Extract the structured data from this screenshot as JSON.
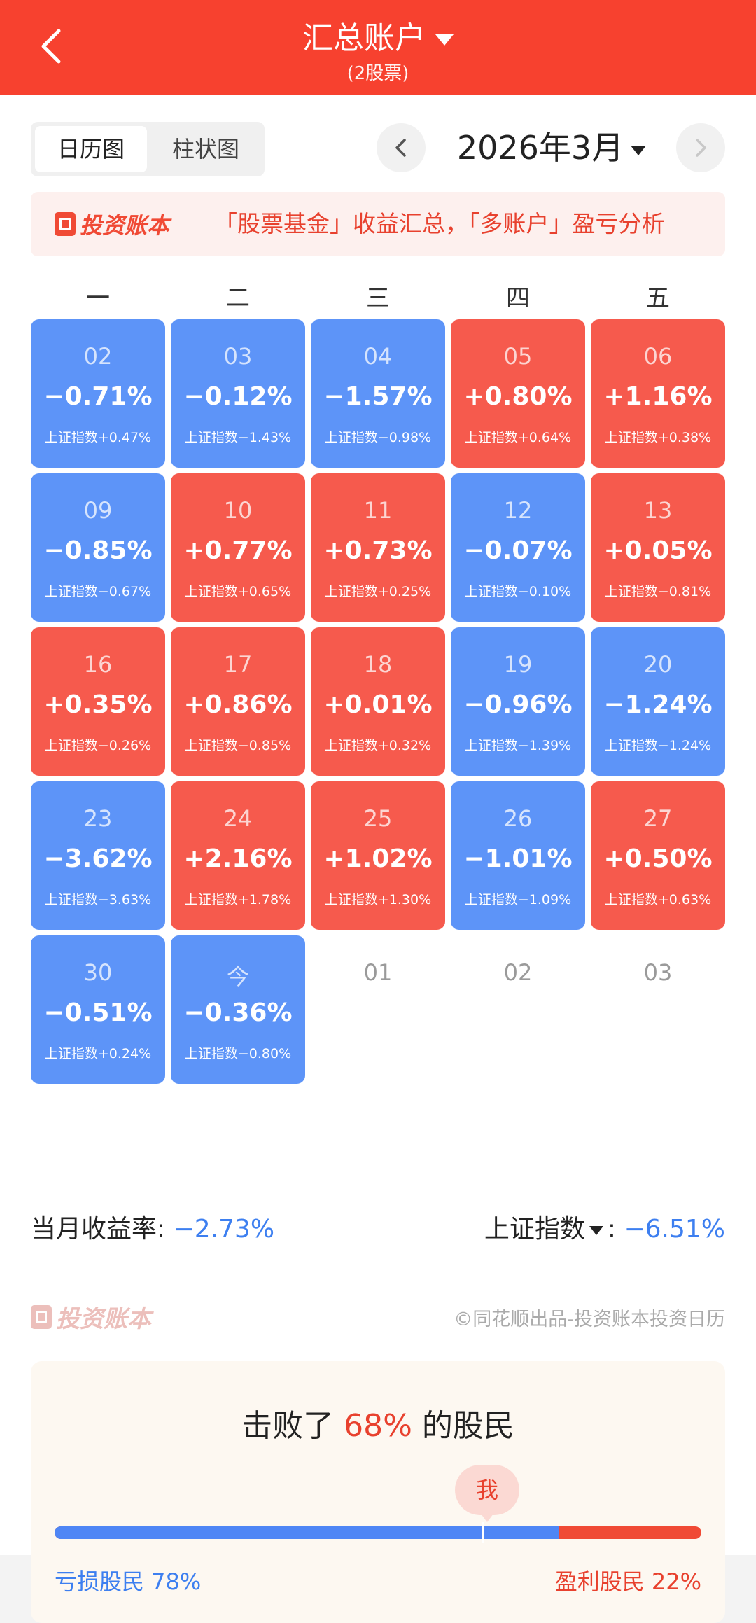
{
  "header": {
    "title": "汇总账户",
    "subtitle": "(2股票)"
  },
  "tabs": [
    {
      "label": "日历图",
      "active": true
    },
    {
      "label": "柱状图",
      "active": false
    }
  ],
  "month_label": "2026年3月",
  "banner": {
    "logo_text": "投资账本",
    "text": "「股票基金」收益汇总，「多账户」盈亏分析"
  },
  "weekdays": [
    "一",
    "二",
    "三",
    "四",
    "五"
  ],
  "calendar": [
    {
      "day": "02",
      "pct": "−0.71%",
      "index": "上证指数+0.47%",
      "color": "blue"
    },
    {
      "day": "03",
      "pct": "−0.12%",
      "index": "上证指数−1.43%",
      "color": "blue"
    },
    {
      "day": "04",
      "pct": "−1.57%",
      "index": "上证指数−0.98%",
      "color": "blue"
    },
    {
      "day": "05",
      "pct": "+0.80%",
      "index": "上证指数+0.64%",
      "color": "red"
    },
    {
      "day": "06",
      "pct": "+1.16%",
      "index": "上证指数+0.38%",
      "color": "red"
    },
    {
      "day": "09",
      "pct": "−0.85%",
      "index": "上证指数−0.67%",
      "color": "blue"
    },
    {
      "day": "10",
      "pct": "+0.77%",
      "index": "上证指数+0.65%",
      "color": "red"
    },
    {
      "day": "11",
      "pct": "+0.73%",
      "index": "上证指数+0.25%",
      "color": "red"
    },
    {
      "day": "12",
      "pct": "−0.07%",
      "index": "上证指数−0.10%",
      "color": "blue"
    },
    {
      "day": "13",
      "pct": "+0.05%",
      "index": "上证指数−0.81%",
      "color": "red"
    },
    {
      "day": "16",
      "pct": "+0.35%",
      "index": "上证指数−0.26%",
      "color": "red"
    },
    {
      "day": "17",
      "pct": "+0.86%",
      "index": "上证指数−0.85%",
      "color": "red"
    },
    {
      "day": "18",
      "pct": "+0.01%",
      "index": "上证指数+0.32%",
      "color": "red"
    },
    {
      "day": "19",
      "pct": "−0.96%",
      "index": "上证指数−1.39%",
      "color": "blue"
    },
    {
      "day": "20",
      "pct": "−1.24%",
      "index": "上证指数−1.24%",
      "color": "blue"
    },
    {
      "day": "23",
      "pct": "−3.62%",
      "index": "上证指数−3.63%",
      "color": "blue"
    },
    {
      "day": "24",
      "pct": "+2.16%",
      "index": "上证指数+1.78%",
      "color": "red"
    },
    {
      "day": "25",
      "pct": "+1.02%",
      "index": "上证指数+1.30%",
      "color": "red"
    },
    {
      "day": "26",
      "pct": "−1.01%",
      "index": "上证指数−1.09%",
      "color": "blue"
    },
    {
      "day": "27",
      "pct": "+0.50%",
      "index": "上证指数+0.63%",
      "color": "red"
    },
    {
      "day": "30",
      "pct": "−0.51%",
      "index": "上证指数+0.24%",
      "color": "blue"
    },
    {
      "day": "今",
      "pct": "−0.36%",
      "index": "上证指数−0.80%",
      "color": "blue"
    },
    {
      "day": "01",
      "pct": "",
      "index": "",
      "color": "empty"
    },
    {
      "day": "02",
      "pct": "",
      "index": "",
      "color": "empty"
    },
    {
      "day": "03",
      "pct": "",
      "index": "",
      "color": "empty"
    }
  ],
  "summary": {
    "monthly_label": "当月收益率:",
    "monthly_value": "−2.73%",
    "index_label": "上证指数",
    "index_colon": ":",
    "index_value": "−6.51%"
  },
  "footer": {
    "logo_text": "投资账本",
    "credit": "©同花顺出品-投资账本投资日历"
  },
  "beat": {
    "prefix": "击败了",
    "percent": "68%",
    "suffix": "的股民",
    "me": "我",
    "loss_label": "亏损股民 78%",
    "gain_label": "盈利股民 22%",
    "loss_fraction": 0.78,
    "me_fraction": 0.66
  },
  "colors": {
    "header": "#f7412f",
    "blue": "#5d94f8",
    "red": "#f65a4d"
  }
}
